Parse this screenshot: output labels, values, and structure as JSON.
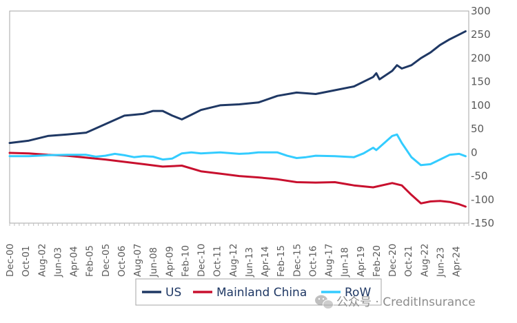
{
  "chart_data": {
    "type": "line",
    "title": "",
    "xlabel": "",
    "ylabel": "",
    "ylim": [
      -150,
      300
    ],
    "yticks": [
      300,
      250,
      200,
      150,
      100,
      50,
      0,
      -50,
      -100,
      -150
    ],
    "xlim": [
      "Dec-00",
      "Dec-24"
    ],
    "x_tick_labels": [
      "Dec-00",
      "Oct-01",
      "Aug-02",
      "Jun-03",
      "Apr-04",
      "Feb-05",
      "Dec-05",
      "Oct-06",
      "Aug-07",
      "Jun-08",
      "Apr-09",
      "Feb-10",
      "Dec-10",
      "Oct-11",
      "Aug-12",
      "Jun-13",
      "Apr-14",
      "Feb-15",
      "Dec-15",
      "Oct-16",
      "Aug-17",
      "Jun-18",
      "Apr-19",
      "Feb-20",
      "Dec-20",
      "Oct-21",
      "Aug-22",
      "Jun-23",
      "Apr-24"
    ],
    "grid": false,
    "legend_position": "bottom",
    "series": [
      {
        "name": "US",
        "color": "#1f3864",
        "points": [
          [
            "Dec-00",
            20
          ],
          [
            "Dec-01",
            25
          ],
          [
            "Dec-02",
            35
          ],
          [
            "Dec-03",
            38
          ],
          [
            "Dec-04",
            42
          ],
          [
            "Dec-05",
            60
          ],
          [
            "Dec-06",
            78
          ],
          [
            "Jun-07",
            80
          ],
          [
            "Dec-07",
            82
          ],
          [
            "Jun-08",
            88
          ],
          [
            "Dec-08",
            88
          ],
          [
            "Jun-09",
            78
          ],
          [
            "Dec-09",
            70
          ],
          [
            "Jun-10",
            80
          ],
          [
            "Dec-10",
            90
          ],
          [
            "Dec-11",
            100
          ],
          [
            "Dec-12",
            102
          ],
          [
            "Dec-13",
            106
          ],
          [
            "Dec-14",
            120
          ],
          [
            "Dec-15",
            127
          ],
          [
            "Dec-16",
            124
          ],
          [
            "Dec-17",
            132
          ],
          [
            "Dec-18",
            140
          ],
          [
            "Dec-19",
            160
          ],
          [
            "Feb-20",
            168
          ],
          [
            "Apr-20",
            155
          ],
          [
            "Dec-20",
            173
          ],
          [
            "Mar-21",
            185
          ],
          [
            "Jun-21",
            178
          ],
          [
            "Dec-21",
            185
          ],
          [
            "Jun-22",
            200
          ],
          [
            "Dec-22",
            212
          ],
          [
            "Jun-23",
            228
          ],
          [
            "Dec-23",
            240
          ],
          [
            "Jun-24",
            250
          ],
          [
            "Oct-24",
            257
          ]
        ]
      },
      {
        "name": "Mainland China",
        "color": "#c8102e",
        "points": [
          [
            "Dec-00",
            -1
          ],
          [
            "Dec-01",
            -2
          ],
          [
            "Dec-02",
            -5
          ],
          [
            "Dec-03",
            -7
          ],
          [
            "Dec-04",
            -11
          ],
          [
            "Dec-05",
            -15
          ],
          [
            "Dec-06",
            -20
          ],
          [
            "Dec-07",
            -25
          ],
          [
            "Dec-08",
            -30
          ],
          [
            "Dec-09",
            -28
          ],
          [
            "Dec-10",
            -40
          ],
          [
            "Dec-11",
            -45
          ],
          [
            "Dec-12",
            -50
          ],
          [
            "Dec-13",
            -53
          ],
          [
            "Dec-14",
            -57
          ],
          [
            "Dec-15",
            -63
          ],
          [
            "Dec-16",
            -64
          ],
          [
            "Dec-17",
            -63
          ],
          [
            "Dec-18",
            -70
          ],
          [
            "Dec-19",
            -74
          ],
          [
            "Dec-20",
            -65
          ],
          [
            "Jun-21",
            -70
          ],
          [
            "Dec-21",
            -90
          ],
          [
            "Jun-22",
            -108
          ],
          [
            "Dec-22",
            -104
          ],
          [
            "Jun-23",
            -103
          ],
          [
            "Dec-23",
            -105
          ],
          [
            "Jun-24",
            -110
          ],
          [
            "Oct-24",
            -115
          ]
        ]
      },
      {
        "name": "RoW",
        "color": "#33ccff",
        "points": [
          [
            "Dec-00",
            -8
          ],
          [
            "Dec-01",
            -8
          ],
          [
            "Dec-02",
            -6
          ],
          [
            "Dec-03",
            -5
          ],
          [
            "Dec-04",
            -5
          ],
          [
            "Jun-05",
            -9
          ],
          [
            "Dec-05",
            -7
          ],
          [
            "Jun-06",
            -3
          ],
          [
            "Dec-06",
            -6
          ],
          [
            "Jun-07",
            -10
          ],
          [
            "Dec-07",
            -8
          ],
          [
            "Jun-08",
            -9
          ],
          [
            "Dec-08",
            -15
          ],
          [
            "Jun-09",
            -13
          ],
          [
            "Dec-09",
            -2
          ],
          [
            "Jun-10",
            0
          ],
          [
            "Dec-10",
            -2
          ],
          [
            "Dec-11",
            0
          ],
          [
            "Dec-12",
            -3
          ],
          [
            "Jun-13",
            -2
          ],
          [
            "Dec-13",
            0
          ],
          [
            "Jun-14",
            0
          ],
          [
            "Dec-14",
            0
          ],
          [
            "Jun-15",
            -7
          ],
          [
            "Dec-15",
            -12
          ],
          [
            "Jun-16",
            -10
          ],
          [
            "Dec-16",
            -7
          ],
          [
            "Dec-17",
            -8
          ],
          [
            "Dec-18",
            -10
          ],
          [
            "Jun-19",
            -2
          ],
          [
            "Dec-19",
            10
          ],
          [
            "Feb-20",
            5
          ],
          [
            "Dec-20",
            35
          ],
          [
            "Mar-21",
            38
          ],
          [
            "Jun-21",
            20
          ],
          [
            "Dec-21",
            -10
          ],
          [
            "Jun-22",
            -27
          ],
          [
            "Dec-22",
            -25
          ],
          [
            "Jun-23",
            -15
          ],
          [
            "Dec-23",
            -5
          ],
          [
            "Jun-24",
            -3
          ],
          [
            "Oct-24",
            -8
          ]
        ]
      }
    ]
  },
  "watermark": {
    "text": "公众号 · CreditInsurance",
    "icon": "wechat-icon"
  }
}
